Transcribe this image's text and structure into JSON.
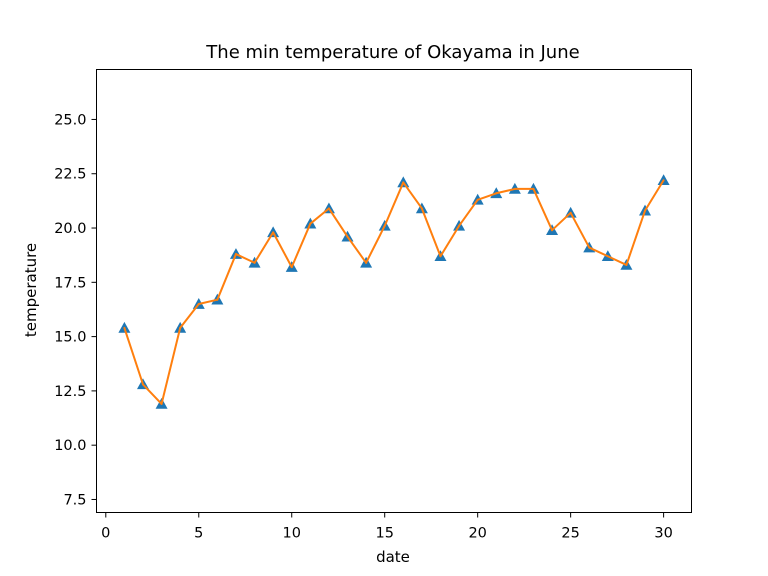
{
  "chart_data": {
    "type": "line",
    "title": "The min temperature of Okayama in June",
    "xlabel": "date",
    "ylabel": "temperature",
    "xlim": [
      -0.5,
      31.5
    ],
    "ylim": [
      6.9,
      27.3
    ],
    "grid": false,
    "x_ticks": [
      0,
      5,
      10,
      15,
      20,
      25,
      30
    ],
    "y_ticks": [
      7.5,
      10.0,
      12.5,
      15.0,
      17.5,
      20.0,
      22.5,
      25.0
    ],
    "x_tick_labels": [
      "0",
      "5",
      "10",
      "15",
      "20",
      "25",
      "30"
    ],
    "y_tick_labels": [
      "7.5",
      "10.0",
      "12.5",
      "15.0",
      "17.5",
      "20.0",
      "22.5",
      "25.0"
    ],
    "x": [
      1,
      2,
      3,
      4,
      5,
      6,
      7,
      8,
      9,
      10,
      11,
      12,
      13,
      14,
      15,
      16,
      17,
      18,
      19,
      20,
      21,
      22,
      23,
      24,
      25,
      26,
      27,
      28,
      29,
      30
    ],
    "y": [
      15.4,
      12.8,
      11.9,
      15.4,
      16.5,
      16.7,
      18.8,
      18.4,
      19.8,
      18.2,
      20.2,
      20.9,
      19.6,
      18.4,
      20.1,
      22.1,
      20.9,
      18.7,
      20.1,
      21.3,
      21.6,
      21.8,
      21.8,
      19.9,
      20.7,
      19.1,
      18.7,
      18.3,
      20.8,
      22.2
    ],
    "marker_color": "#1f77b4",
    "line_color": "#ff7f0e",
    "marker_shape": "triangle-up"
  }
}
